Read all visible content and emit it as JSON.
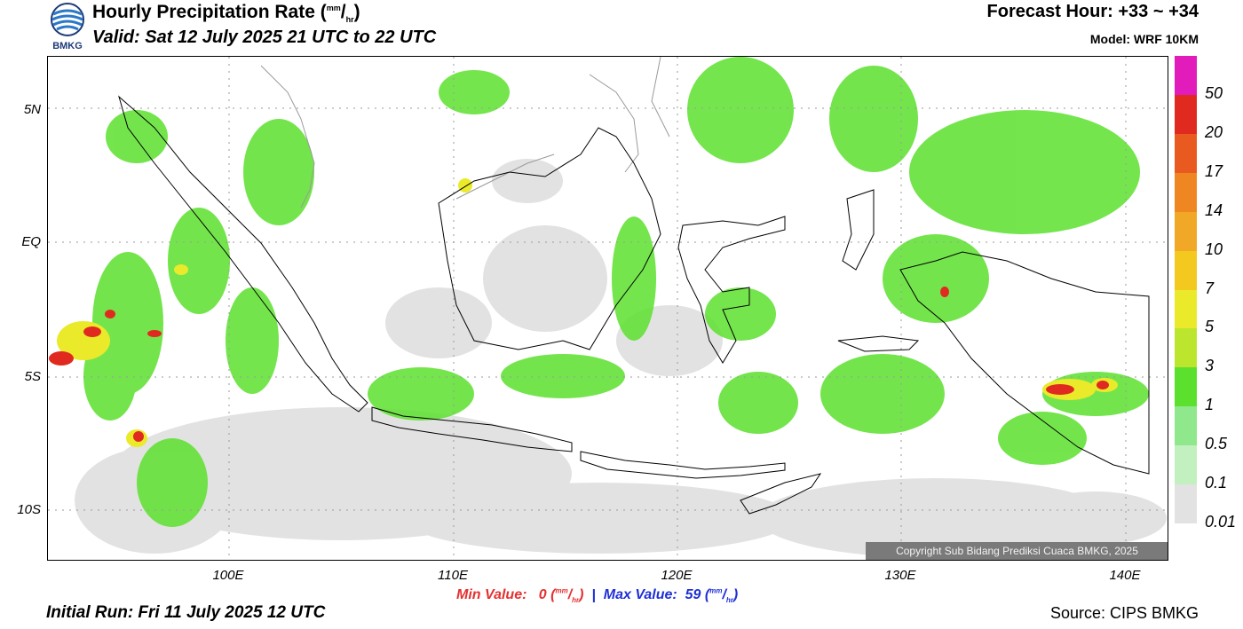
{
  "header": {
    "title_main": "Hourly Precipitation Rate (",
    "title_unit_num": "mm",
    "title_unit_slash": "/",
    "title_unit_den": "hr",
    "title_close": ")",
    "valid": "Valid: Sat 12 July 2025 21 UTC to 22 UTC",
    "forecast_hour": "Forecast Hour: +33 ~ +34",
    "model": "Model: WRF 10KM"
  },
  "logo": {
    "text": "BMKG",
    "icon": "bmkg-logo"
  },
  "axes": {
    "y_labels": [
      "5N",
      "EQ",
      "5S",
      "10S"
    ],
    "x_labels": [
      "100E",
      "110E",
      "120E",
      "130E",
      "140E"
    ]
  },
  "stats": {
    "min_label": "Min Value:",
    "min_value": "0",
    "unit_open": "(",
    "unit_num": "mm",
    "unit_slash": "/",
    "unit_den": "hr",
    "unit_close": ")",
    "separator": "|",
    "max_label": "Max Value:",
    "max_value": "59"
  },
  "footer": {
    "initial_run": "Initial Run: Fri 11 July 2025 12 UTC",
    "source": "Source: CIPS BMKG",
    "copyright": "Copyright Sub Bidang Prediksi Cuaca BMKG, 2025"
  },
  "legend": {
    "labels": [
      "50",
      "20",
      "17",
      "14",
      "10",
      "7",
      "5",
      "3",
      "1",
      "0.5",
      "0.1",
      "0.01"
    ],
    "colors": [
      "#e21cbb",
      "#e02a20",
      "#e85a1f",
      "#ee8722",
      "#f0a826",
      "#f3c81f",
      "#eaea2a",
      "#bce62e",
      "#5ce02e",
      "#8fe88b",
      "#c3f0bf",
      "#e2e2e2"
    ]
  },
  "colors": {
    "land_outline": "#000000",
    "neighbor_outline": "#9a9a9a",
    "rain_light": "#e2e2e2",
    "rain_green": "#5ce02e",
    "rain_heavy": "#e02a20"
  }
}
